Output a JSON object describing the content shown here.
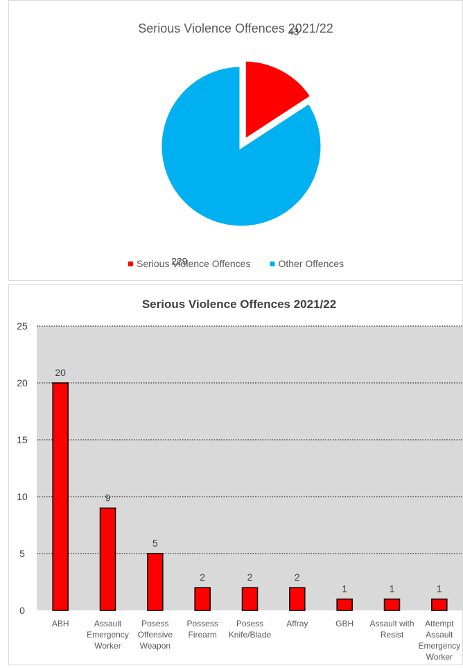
{
  "chart_data": [
    {
      "type": "pie",
      "title": "Serious Violence Offences 2021/22",
      "slices": [
        {
          "name": "Serious Violence Offences",
          "value": 43,
          "color": "#ff0000",
          "exploded": true
        },
        {
          "name": "Other Offences",
          "value": 229,
          "color": "#00b0f0",
          "exploded": false
        }
      ],
      "legend_position": "bottom"
    },
    {
      "type": "bar",
      "title": "Serious Violence Offences 2021/22",
      "categories": [
        "ABH",
        "Assault Emergency Worker",
        "Posess Offensive Weapon",
        "Possess Firearm",
        "Posess Knife/Blade",
        "Affray",
        "GBH",
        "Assault with Resist",
        "Attempt Assault Emergency Worker"
      ],
      "category_lines": [
        [
          "ABH"
        ],
        [
          "Assault",
          "Emergency",
          "Worker"
        ],
        [
          "Posess",
          "Offensive",
          "Weapon"
        ],
        [
          "Possess",
          "Firearm"
        ],
        [
          "Posess",
          "Knife/Blade"
        ],
        [
          "Affray"
        ],
        [
          "GBH"
        ],
        [
          "Assault with",
          "Resist"
        ],
        [
          "Attempt",
          "Assault",
          "Emergency",
          "Worker"
        ]
      ],
      "values": [
        20,
        9,
        5,
        2,
        2,
        2,
        1,
        1,
        1
      ],
      "ylim": [
        0,
        25
      ],
      "yticks": [
        "0",
        "5",
        "10",
        "15",
        "20",
        "25"
      ],
      "bar_color": "#ff0000",
      "plot_background": "#d9d9d9",
      "grid": true,
      "grid_style": "dotted"
    }
  ]
}
